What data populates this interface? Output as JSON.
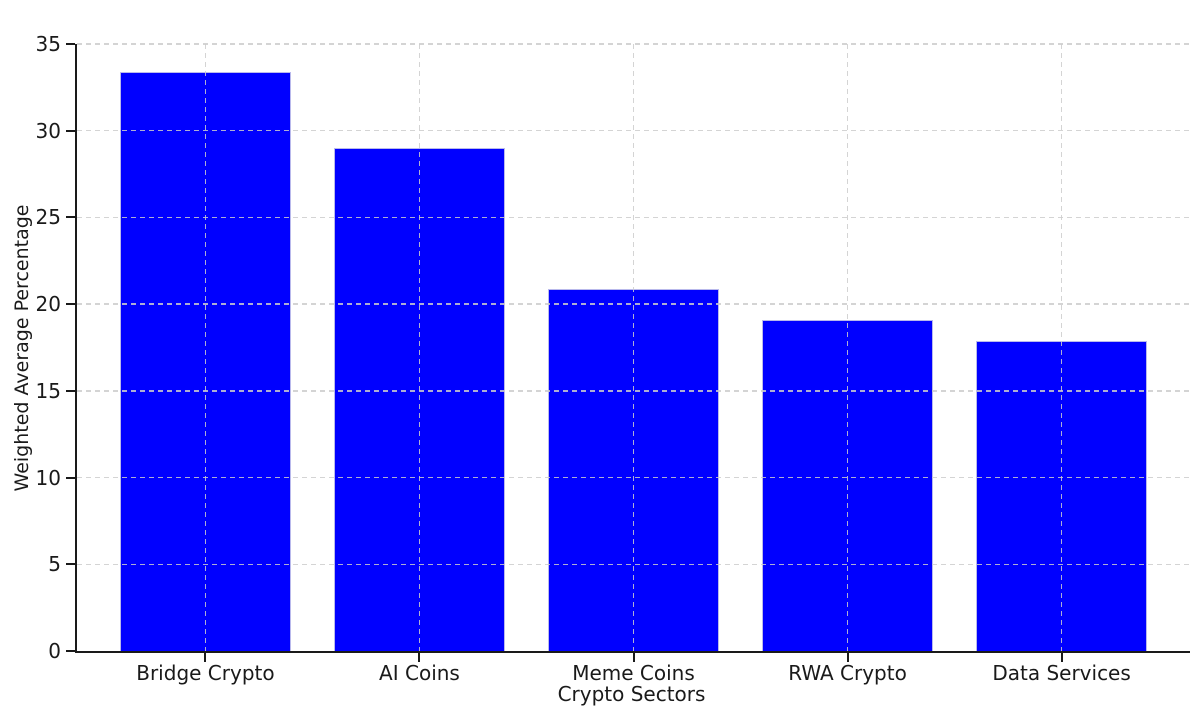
{
  "chart_data": {
    "type": "bar",
    "title": "",
    "xlabel": "Crypto Sectors",
    "ylabel": "Weighted Average Percentage",
    "categories": [
      "Bridge Crypto",
      "AI Coins",
      "Meme Coins",
      "RWA Crypto",
      "Data Services"
    ],
    "values": [
      33.4,
      29.0,
      20.9,
      19.1,
      17.9
    ],
    "ylim": [
      0,
      35
    ],
    "yticks": [
      0,
      5,
      10,
      15,
      20,
      25,
      30,
      35
    ],
    "grid": "dashed, horizontal and vertical, drawn over bars",
    "legend_position": "none",
    "colors": {
      "bar_fill": "#0000ff",
      "bar_edge": "#b9b9ec",
      "grid": "#cdcdcd",
      "axis": "#1a1a1a",
      "text": "#1a1a1a",
      "background": "#ffffff"
    }
  }
}
